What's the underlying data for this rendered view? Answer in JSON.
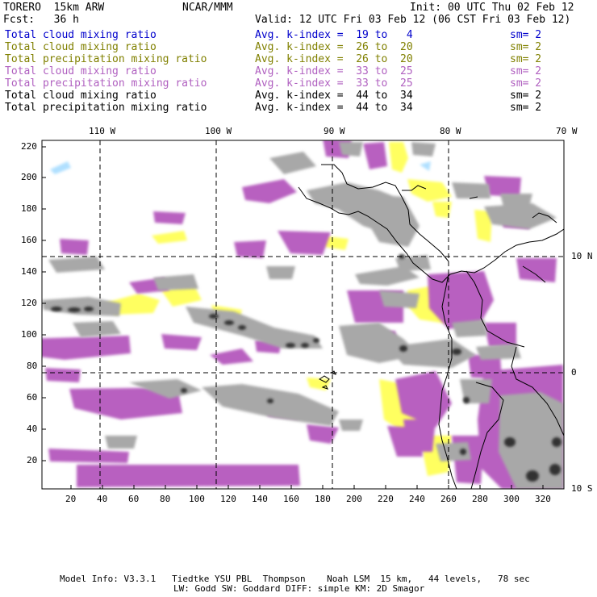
{
  "header": {
    "model": "TORERO  15km ARW",
    "org": "NCAR/MMM",
    "init": "Init: 00 UTC Thu 02 Feb 12",
    "fcst": "Fcst:   36 h",
    "valid": "Valid: 12 UTC Fri 03 Feb 12 (06 CST Fri 03 Feb 12)"
  },
  "legend": [
    {
      "field": "Total cloud mixing ratio",
      "kindex": "Avg. k-index =  19 to   4",
      "sm": "sm= 2",
      "color": "#0000cc"
    },
    {
      "field": "Total cloud mixing ratio",
      "kindex": "Avg. k-index =  26 to  20",
      "sm": "sm= 2",
      "color": "#808000"
    },
    {
      "field": "Total precipitation mixing ratio",
      "kindex": "Avg. k-index =  26 to  20",
      "sm": "sm= 2",
      "color": "#808000"
    },
    {
      "field": "Total cloud mixing ratio",
      "kindex": "Avg. k-index =  33 to  25",
      "sm": "sm= 2",
      "color": "#b060c0"
    },
    {
      "field": "Total precipitation mixing ratio",
      "kindex": "Avg. k-index =  33 to  25",
      "sm": "sm= 2",
      "color": "#b060c0"
    },
    {
      "field": "Total cloud mixing ratio",
      "kindex": "Avg. k-index =  44 to  34",
      "sm": "sm= 2",
      "color": "#000000"
    },
    {
      "field": "Total precipitation mixing ratio",
      "kindex": "Avg. k-index =  44 to  34",
      "sm": "sm= 2",
      "color": "#000000"
    }
  ],
  "axes": {
    "top_lon": [
      "110 W",
      "100 W",
      "90 W",
      "80 W",
      "70 W"
    ],
    "right_lat": [
      "10 N",
      "0",
      "10 S"
    ],
    "left_y": [
      "220",
      "200",
      "180",
      "160",
      "140",
      "120",
      "100",
      "80",
      "60",
      "40",
      "20"
    ],
    "bottom_x": [
      "20",
      "40",
      "60",
      "80",
      "100",
      "120",
      "140",
      "160",
      "180",
      "200",
      "220",
      "240",
      "260",
      "280",
      "300",
      "320"
    ]
  },
  "colors": {
    "blue": "#0000cc",
    "olive": "#808000",
    "purple": "#b060c0",
    "yellow_fill": "#ffff60",
    "purple_fill": "#b860c0",
    "gray_fill": "#a0a0a0",
    "dark_fill": "#303030",
    "cyan_fill": "#b0e0ff"
  },
  "footer": {
    "line1": "Model Info: V3.3.1   Tiedtke YSU PBL  Thompson    Noah LSM  15 km,   44 levels,   78 sec",
    "line2": "LW: Godd SW: Goddard DIFF: simple KM: 2D Smagor"
  }
}
